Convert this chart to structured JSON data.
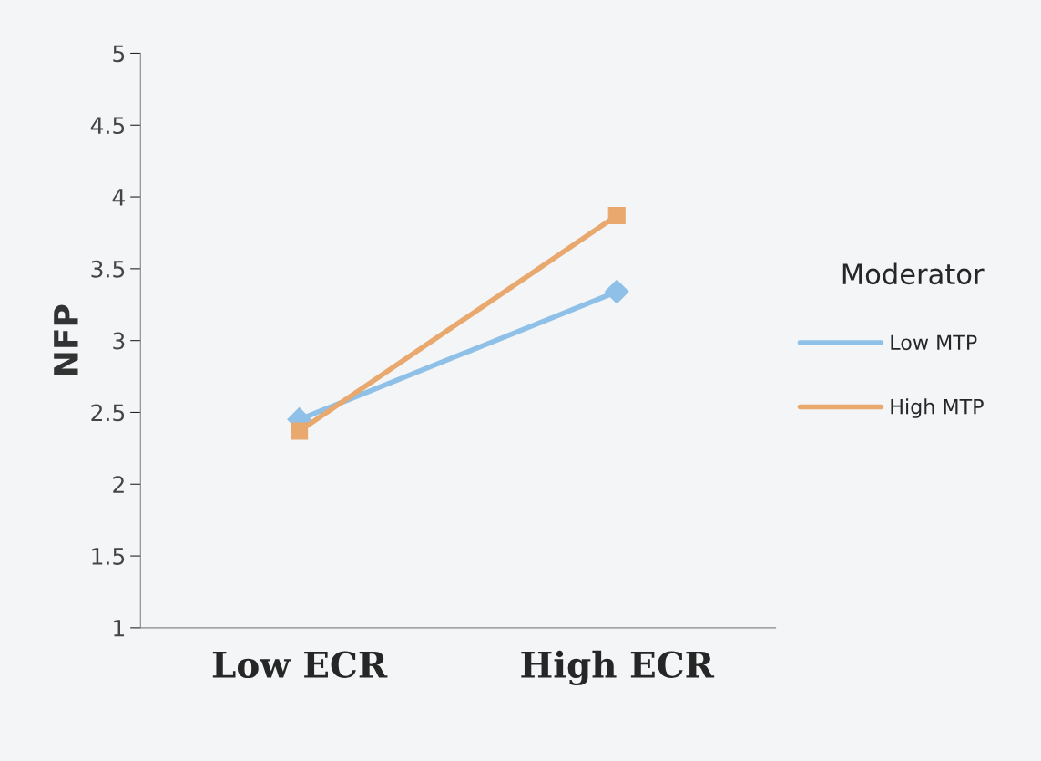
{
  "chart_data": {
    "type": "line",
    "ylabel": "NFP",
    "categories": [
      "Low ECR",
      "High ECR"
    ],
    "series": [
      {
        "name": "Low MTP",
        "color": "#8fc0e8",
        "marker": "diamond",
        "values": [
          2.45,
          3.34
        ]
      },
      {
        "name": "High MTP",
        "color": "#e8a86e",
        "marker": "square",
        "values": [
          2.37,
          3.87
        ]
      }
    ],
    "ylim": [
      1,
      5
    ],
    "yticks": [
      1,
      1.5,
      2,
      2.5,
      3,
      3.5,
      4,
      4.5,
      5
    ],
    "grid": false,
    "legend": "right",
    "legend_title": "Moderator"
  }
}
